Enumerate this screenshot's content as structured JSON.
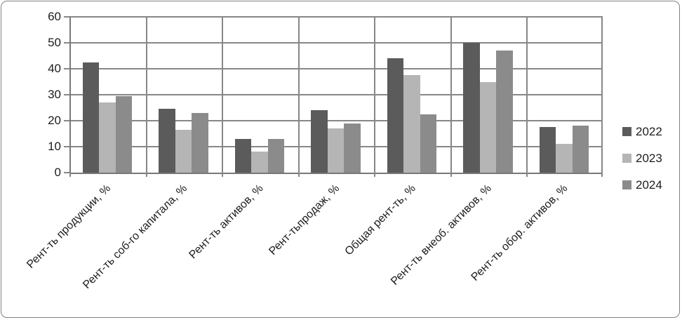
{
  "chart_data": {
    "type": "bar",
    "title": "",
    "xlabel": "",
    "ylabel": "",
    "ylim": [
      0,
      60
    ],
    "ytick_step": 10,
    "yticks": [
      0,
      10,
      20,
      30,
      40,
      50,
      60
    ],
    "grid": true,
    "legend_position": "right",
    "categories": [
      "Рент-ть продукции, %",
      "Рент-ть соб-го капитала, %",
      "Рент-ть активов, %",
      "Рент-тьпродаж, %",
      "Общая рент-ть, %",
      "Рент-ть внеоб. активов, %",
      "Рент-ть обор. активов, %"
    ],
    "series": [
      {
        "name": "2022",
        "color": "#5b5b5b",
        "values": [
          42.5,
          24.5,
          13,
          24,
          44,
          50,
          17.5
        ]
      },
      {
        "name": "2023",
        "color": "#b5b5b5",
        "values": [
          27,
          16.5,
          8,
          17,
          37.5,
          35,
          11
        ]
      },
      {
        "name": "2024",
        "color": "#8b8b8b",
        "values": [
          29.5,
          23,
          13,
          19,
          22.5,
          47,
          18
        ]
      }
    ],
    "colors": {
      "gridline": "#878787",
      "axis": "#787878",
      "frame_border": "#828282",
      "text": "#1c1c1c",
      "background": "#ffffff"
    }
  }
}
